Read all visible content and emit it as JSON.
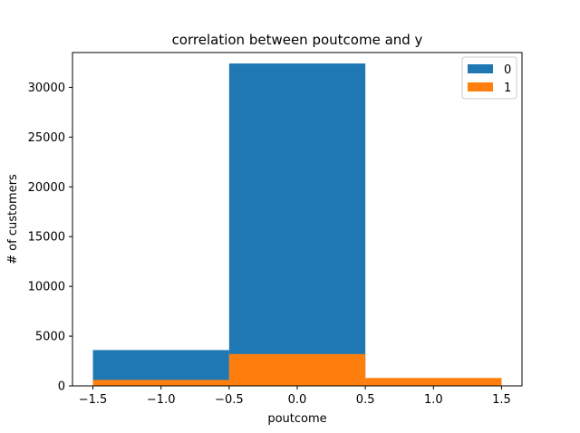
{
  "chart_data": {
    "type": "bar",
    "title": "correlation between poutcome and y",
    "xlabel": "poutcome",
    "ylabel": "# of customers",
    "xlim": [
      -1.65,
      1.65
    ],
    "ylim": [
      0,
      33500
    ],
    "xticks": [
      -1.5,
      -1.0,
      -0.5,
      0.0,
      0.5,
      1.0,
      1.5
    ],
    "xtick_labels": [
      "−1.5",
      "−1.0",
      "−0.5",
      "0.0",
      "0.5",
      "1.0",
      "1.5"
    ],
    "yticks": [
      0,
      5000,
      10000,
      15000,
      20000,
      25000,
      30000
    ],
    "ytick_labels": [
      "0",
      "5000",
      "10000",
      "15000",
      "20000",
      "25000",
      "30000"
    ],
    "bins": [
      [
        -1.5,
        -0.5
      ],
      [
        -0.5,
        0.5
      ],
      [
        0.5,
        1.5
      ]
    ],
    "series": [
      {
        "name": "0",
        "color": "#1f77b4",
        "values": [
          3600,
          32400,
          0
        ]
      },
      {
        "name": "1",
        "color": "#ff7f0e",
        "values": [
          600,
          3200,
          800
        ]
      }
    ],
    "legend": "top-right",
    "grid": false
  }
}
